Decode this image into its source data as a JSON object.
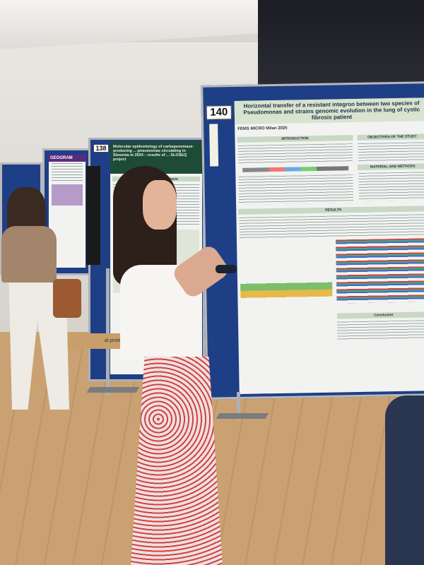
{
  "poster_140": {
    "number": "140",
    "title": "Horizontal transfer of a resistant integron between two species of Pseudomonas and strains genomic evolution in the lung of cystic fibrosis patient",
    "logo": "FEMS MICRO Milan 2025",
    "sections": [
      "INTRODUCTION",
      "OBJECTIVES OF THE STUDY",
      "MATERIAL AND METHODS",
      "RESULTS",
      "Conclusion"
    ]
  },
  "poster_138": {
    "number": "138",
    "title": "Molecular epidemiology of carbapenemase-producing ... pneumoniae circulating in Slovenia in 2024 – results of ... SLOSEQ project",
    "section": "RESULTS and CONCLUSION"
  },
  "poster_far": {
    "title": "GEOGRAM"
  },
  "box_label": "al protection",
  "colors": {
    "board": "#1e3f86",
    "poster_header": "#d8e3d0",
    "skirt": "#d9a0a0",
    "floor": "#c59c6c"
  }
}
